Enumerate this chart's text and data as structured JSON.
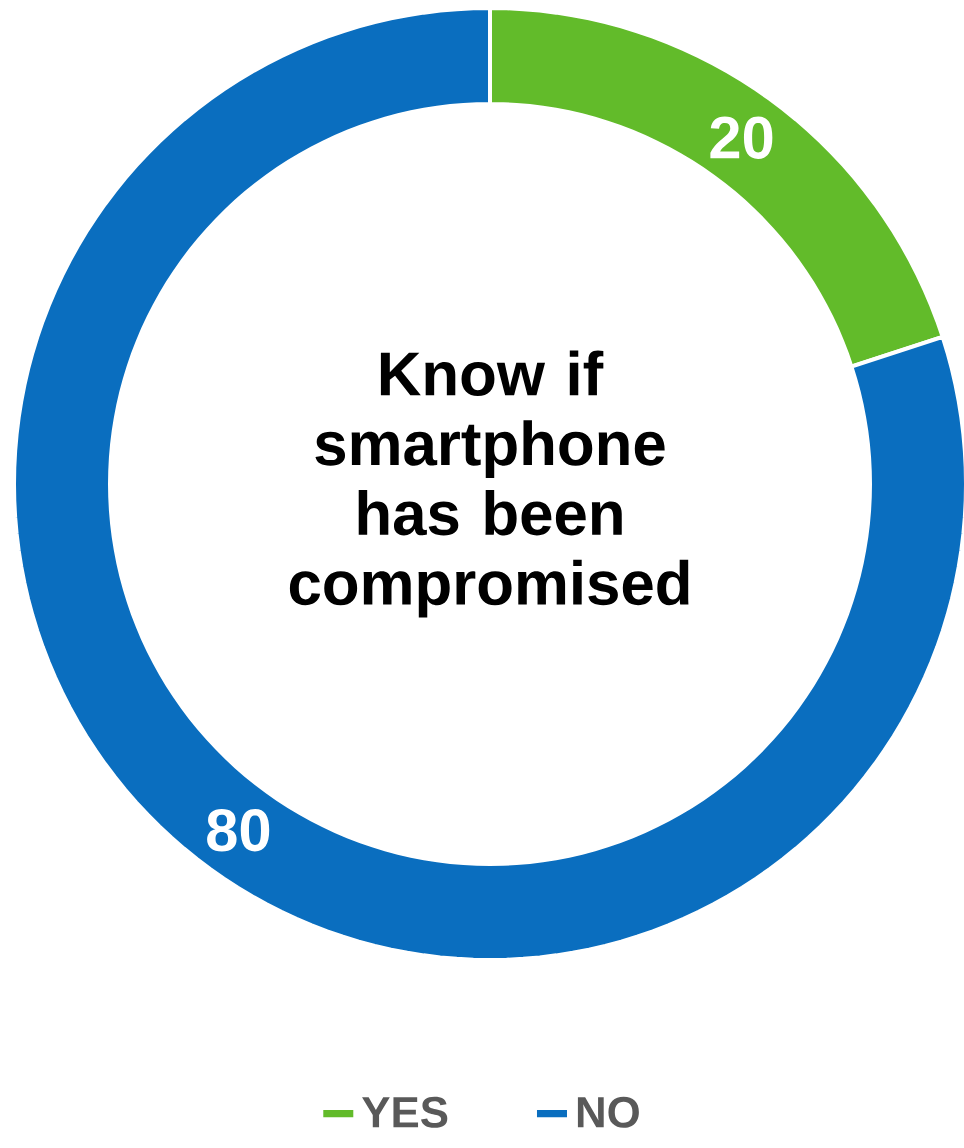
{
  "chart_data": {
    "type": "donut",
    "title": "Know if smartphone has been compromised",
    "categories": [
      "YES",
      "NO"
    ],
    "values": [
      20,
      80
    ],
    "colors": [
      "#62bb2a",
      "#0a6ebf"
    ],
    "data_labels": true,
    "legend": "bottom"
  }
}
